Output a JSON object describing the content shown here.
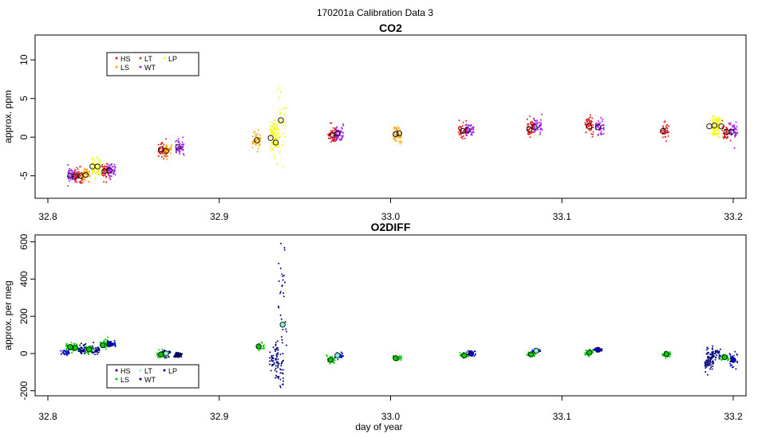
{
  "figure_title": "170201a   Calibration Data 3",
  "xlabel": "day of year",
  "chart_data": [
    {
      "type": "scatter",
      "title": "CO2",
      "ylabel": "approx. ppm",
      "xlim": [
        32.8,
        33.2
      ],
      "ylim": [
        -7.5,
        12.8
      ],
      "xticks": [
        32.8,
        32.9,
        33.0,
        33.1,
        33.2
      ],
      "yticks": [
        -5,
        0,
        5,
        10
      ],
      "legend": {
        "position": "top-left",
        "entries": [
          {
            "label": "HS",
            "color": "#e31a1c"
          },
          {
            "label": "LT",
            "color": "#a0522d"
          },
          {
            "label": "LP",
            "color": "#ffff00"
          },
          {
            "label": "LS",
            "color": "#ffa500"
          },
          {
            "label": "WT",
            "color": "#a020f0"
          }
        ]
      },
      "clusters": [
        {
          "x": 32.814,
          "y": -5.0,
          "color": "#a020f0",
          "n": 50,
          "sd": 0.5
        },
        {
          "x": 32.818,
          "y": -5.0,
          "color": "#e31a1c",
          "n": 50,
          "sd": 0.5
        },
        {
          "x": 32.822,
          "y": -4.8,
          "color": "#ffa500",
          "n": 50,
          "sd": 0.5
        },
        {
          "x": 32.828,
          "y": -3.9,
          "color": "#ffff00",
          "n": 60,
          "sd": 0.7
        },
        {
          "x": 32.834,
          "y": -4.4,
          "color": "#e31a1c",
          "n": 50,
          "sd": 0.5
        },
        {
          "x": 32.837,
          "y": -4.2,
          "color": "#a020f0",
          "n": 50,
          "sd": 0.5
        },
        {
          "x": 32.867,
          "y": -1.6,
          "color": "#e31a1c",
          "n": 50,
          "sd": 0.5
        },
        {
          "x": 32.87,
          "y": -1.7,
          "color": "#ffa500",
          "n": 40,
          "sd": 0.5
        },
        {
          "x": 32.877,
          "y": -1.4,
          "color": "#a020f0",
          "n": 50,
          "sd": 0.5
        },
        {
          "x": 32.922,
          "y": -0.4,
          "color": "#ffa500",
          "n": 40,
          "sd": 0.6
        },
        {
          "x": 32.932,
          "y": -0.1,
          "color": "#ffff00",
          "n": 80,
          "sd": 1.0
        },
        {
          "x": 32.937,
          "y": 2.0,
          "color": "#ffff00",
          "n": 25,
          "sd": 3.5
        },
        {
          "x": 32.966,
          "y": 0.3,
          "color": "#e31a1c",
          "n": 50,
          "sd": 0.6
        },
        {
          "x": 32.97,
          "y": 0.4,
          "color": "#a020f0",
          "n": 50,
          "sd": 0.5
        },
        {
          "x": 33.004,
          "y": 0.4,
          "color": "#ffa500",
          "n": 50,
          "sd": 0.6
        },
        {
          "x": 33.042,
          "y": 0.8,
          "color": "#e31a1c",
          "n": 40,
          "sd": 0.5
        },
        {
          "x": 33.046,
          "y": 1.0,
          "color": "#a020f0",
          "n": 40,
          "sd": 0.5
        },
        {
          "x": 33.082,
          "y": 1.2,
          "color": "#e31a1c",
          "n": 50,
          "sd": 0.6
        },
        {
          "x": 33.086,
          "y": 1.4,
          "color": "#a020f0",
          "n": 40,
          "sd": 0.5
        },
        {
          "x": 33.116,
          "y": 1.4,
          "color": "#e31a1c",
          "n": 50,
          "sd": 0.6
        },
        {
          "x": 33.122,
          "y": 1.3,
          "color": "#a020f0",
          "n": 40,
          "sd": 0.5
        },
        {
          "x": 33.16,
          "y": 0.8,
          "color": "#e31a1c",
          "n": 40,
          "sd": 0.5
        },
        {
          "x": 33.19,
          "y": 1.4,
          "color": "#ffff00",
          "n": 90,
          "sd": 0.7
        },
        {
          "x": 33.196,
          "y": 0.7,
          "color": "#e31a1c",
          "n": 40,
          "sd": 0.5
        },
        {
          "x": 33.2,
          "y": 0.8,
          "color": "#a020f0",
          "n": 40,
          "sd": 0.5
        }
      ],
      "means": [
        {
          "x": 32.813,
          "y": -5.0,
          "fill": "none"
        },
        {
          "x": 32.816,
          "y": -5.1,
          "fill": "none"
        },
        {
          "x": 32.819,
          "y": -5.0,
          "fill": "none"
        },
        {
          "x": 32.822,
          "y": -4.9,
          "fill": "none"
        },
        {
          "x": 32.826,
          "y": -3.8,
          "fill": "none"
        },
        {
          "x": 32.829,
          "y": -3.8,
          "fill": "none"
        },
        {
          "x": 32.833,
          "y": -4.4,
          "fill": "none"
        },
        {
          "x": 32.836,
          "y": -4.3,
          "fill": "none"
        },
        {
          "x": 32.866,
          "y": -1.6,
          "fill": "none"
        },
        {
          "x": 32.869,
          "y": -1.8,
          "fill": "none"
        },
        {
          "x": 32.876,
          "y": -1.3,
          "fill": "none"
        },
        {
          "x": 32.922,
          "y": -0.4,
          "fill": "none"
        },
        {
          "x": 32.93,
          "y": -0.1,
          "fill": "none"
        },
        {
          "x": 32.933,
          "y": -0.7,
          "fill": "none"
        },
        {
          "x": 32.936,
          "y": 2.2,
          "fill": "none"
        },
        {
          "x": 32.966,
          "y": 0.3,
          "fill": "none"
        },
        {
          "x": 32.969,
          "y": 0.5,
          "fill": "none"
        },
        {
          "x": 33.003,
          "y": 0.4,
          "fill": "none"
        },
        {
          "x": 33.005,
          "y": 0.5,
          "fill": "none"
        },
        {
          "x": 33.042,
          "y": 0.8,
          "fill": "none"
        },
        {
          "x": 33.045,
          "y": 0.9,
          "fill": "none"
        },
        {
          "x": 33.081,
          "y": 1.0,
          "fill": "none"
        },
        {
          "x": 33.084,
          "y": 1.3,
          "fill": "none"
        },
        {
          "x": 33.116,
          "y": 1.4,
          "fill": "none"
        },
        {
          "x": 33.121,
          "y": 1.3,
          "fill": "none"
        },
        {
          "x": 33.159,
          "y": 0.8,
          "fill": "none"
        },
        {
          "x": 33.186,
          "y": 1.4,
          "fill": "none"
        },
        {
          "x": 33.189,
          "y": 1.5,
          "fill": "none"
        },
        {
          "x": 33.193,
          "y": 1.4,
          "fill": "none"
        },
        {
          "x": 33.196,
          "y": 0.7,
          "fill": "none"
        },
        {
          "x": 33.199,
          "y": 0.7,
          "fill": "none"
        }
      ]
    },
    {
      "type": "scatter",
      "title": "O2DIFF",
      "ylabel": "approx. per meg",
      "xlim": [
        32.8,
        33.2
      ],
      "ylim": [
        -210,
        620
      ],
      "xticks": [
        32.8,
        32.9,
        33.0,
        33.1,
        33.2
      ],
      "yticks": [
        -200,
        0,
        200,
        400,
        600
      ],
      "legend": {
        "position": "bottom-left",
        "entries": [
          {
            "label": "HS",
            "color": "#000080"
          },
          {
            "label": "LT",
            "color": "#7fffd4"
          },
          {
            "label": "LP",
            "color": "#000080"
          },
          {
            "label": "LS",
            "color": "#00cd00"
          },
          {
            "label": "WT",
            "color": "#000080"
          }
        ]
      },
      "clusters": [
        {
          "x": 32.81,
          "y": 5,
          "color": "#0000cd",
          "n": 30,
          "sd": 8
        },
        {
          "x": 32.813,
          "y": 35,
          "color": "#00cd00",
          "n": 30,
          "sd": 10
        },
        {
          "x": 32.816,
          "y": 30,
          "color": "#00cd00",
          "n": 30,
          "sd": 10
        },
        {
          "x": 32.82,
          "y": 20,
          "color": "#000080",
          "n": 40,
          "sd": 12
        },
        {
          "x": 32.824,
          "y": 22,
          "color": "#00cd00",
          "n": 30,
          "sd": 10
        },
        {
          "x": 32.828,
          "y": 20,
          "color": "#000080",
          "n": 30,
          "sd": 12
        },
        {
          "x": 32.833,
          "y": 50,
          "color": "#00cd00",
          "n": 40,
          "sd": 12
        },
        {
          "x": 32.837,
          "y": 50,
          "color": "#0000cd",
          "n": 30,
          "sd": 8
        },
        {
          "x": 32.866,
          "y": -5,
          "color": "#00cd00",
          "n": 30,
          "sd": 12
        },
        {
          "x": 32.869,
          "y": 0,
          "color": "#000080",
          "n": 30,
          "sd": 10
        },
        {
          "x": 32.876,
          "y": -8,
          "color": "#000080",
          "n": 30,
          "sd": 10
        },
        {
          "x": 32.924,
          "y": 38,
          "color": "#00cd00",
          "n": 30,
          "sd": 10
        },
        {
          "x": 32.932,
          "y": -20,
          "color": "#000080",
          "n": 40,
          "sd": 40
        },
        {
          "x": 32.935,
          "y": -80,
          "color": "#000080",
          "n": 40,
          "sd": 50
        },
        {
          "x": 32.937,
          "y": 300,
          "color": "#000080",
          "n": 30,
          "sd": 150
        },
        {
          "x": 32.965,
          "y": -35,
          "color": "#00cd00",
          "n": 30,
          "sd": 10
        },
        {
          "x": 32.97,
          "y": -10,
          "color": "#0000cd",
          "n": 25,
          "sd": 10
        },
        {
          "x": 33.004,
          "y": -25,
          "color": "#00cd00",
          "n": 30,
          "sd": 8
        },
        {
          "x": 33.043,
          "y": -10,
          "color": "#00cd00",
          "n": 25,
          "sd": 8
        },
        {
          "x": 33.047,
          "y": 2,
          "color": "#0000cd",
          "n": 25,
          "sd": 8
        },
        {
          "x": 33.082,
          "y": -5,
          "color": "#00cd00",
          "n": 25,
          "sd": 8
        },
        {
          "x": 33.085,
          "y": 15,
          "color": "#0000cd",
          "n": 20,
          "sd": 6
        },
        {
          "x": 33.116,
          "y": 5,
          "color": "#00cd00",
          "n": 25,
          "sd": 8
        },
        {
          "x": 33.121,
          "y": 20,
          "color": "#0000cd",
          "n": 20,
          "sd": 6
        },
        {
          "x": 33.161,
          "y": -3,
          "color": "#00cd00",
          "n": 25,
          "sd": 8
        },
        {
          "x": 33.186,
          "y": -40,
          "color": "#000080",
          "n": 70,
          "sd": 25
        },
        {
          "x": 33.19,
          "y": 0,
          "color": "#000080",
          "n": 40,
          "sd": 15
        },
        {
          "x": 33.195,
          "y": -20,
          "color": "#00cd00",
          "n": 25,
          "sd": 8
        },
        {
          "x": 33.2,
          "y": -40,
          "color": "#0000cd",
          "n": 25,
          "sd": 25
        }
      ],
      "means": [
        {
          "x": 32.813,
          "y": 35,
          "fill": "#00cd00"
        },
        {
          "x": 32.816,
          "y": 30,
          "fill": "#00cd00"
        },
        {
          "x": 32.824,
          "y": 22,
          "fill": "#00cd00"
        },
        {
          "x": 32.832,
          "y": 45,
          "fill": "#00cd00"
        },
        {
          "x": 32.836,
          "y": 50,
          "fill": "#0000cd"
        },
        {
          "x": 32.866,
          "y": -5,
          "fill": "#00cd00"
        },
        {
          "x": 32.869,
          "y": 0,
          "fill": "#7fffd4"
        },
        {
          "x": 32.876,
          "y": -8,
          "fill": "#000080"
        },
        {
          "x": 32.923,
          "y": 38,
          "fill": "#00cd00"
        },
        {
          "x": 32.937,
          "y": 155,
          "fill": "#7fffd4"
        },
        {
          "x": 32.965,
          "y": -35,
          "fill": "#00cd00"
        },
        {
          "x": 32.969,
          "y": -10,
          "fill": "#7fffd4"
        },
        {
          "x": 33.003,
          "y": -25,
          "fill": "#00cd00"
        },
        {
          "x": 33.043,
          "y": -10,
          "fill": "#00cd00"
        },
        {
          "x": 33.047,
          "y": 0,
          "fill": "#0000cd"
        },
        {
          "x": 33.082,
          "y": -5,
          "fill": "#00cd00"
        },
        {
          "x": 33.085,
          "y": 15,
          "fill": "#7fffd4"
        },
        {
          "x": 33.116,
          "y": 5,
          "fill": "#00cd00"
        },
        {
          "x": 33.121,
          "y": 20,
          "fill": "#0000cd"
        },
        {
          "x": 33.161,
          "y": -3,
          "fill": "#00cd00"
        },
        {
          "x": 33.195,
          "y": -20,
          "fill": "#00cd00"
        },
        {
          "x": 33.2,
          "y": -35,
          "fill": "#0000cd"
        }
      ]
    }
  ]
}
